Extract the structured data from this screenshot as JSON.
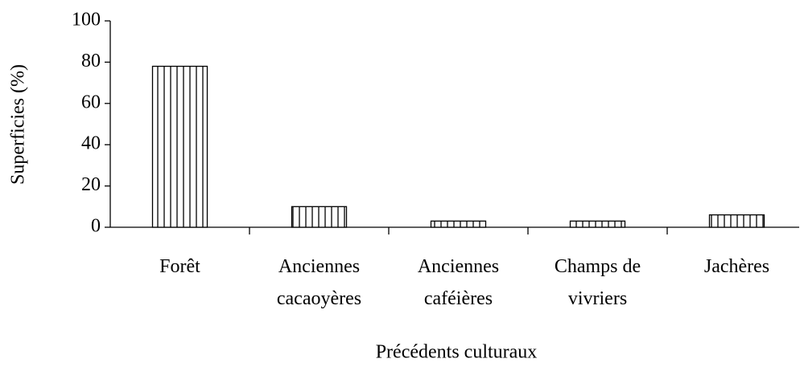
{
  "chart_data": {
    "type": "bar",
    "xlabel": "Précédents culturaux",
    "ylabel": "Superficies (%)",
    "categories": [
      [
        "Forêt"
      ],
      [
        "Anciennes",
        "cacaoyères"
      ],
      [
        "Anciennes",
        "caféières"
      ],
      [
        "Champs de",
        "vivriers"
      ],
      [
        "Jachères"
      ]
    ],
    "values": [
      78,
      10,
      3,
      3,
      6
    ],
    "color": "#000000",
    "ylim": [
      0,
      100
    ],
    "yticks": [
      0,
      20,
      40,
      60,
      80,
      100
    ],
    "grid": false
  }
}
